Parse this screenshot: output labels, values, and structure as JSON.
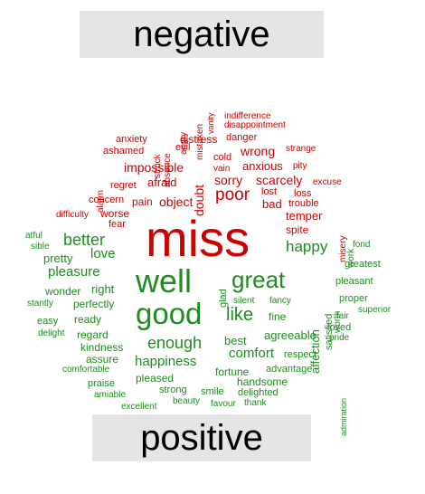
{
  "headings": {
    "negative": "negative",
    "positive": "positive"
  },
  "colors": {
    "negative": "#cc0000",
    "positive": "#1e8c1e",
    "panel": "#e5e5e5"
  },
  "words": [
    {
      "t": "miss",
      "s": "neg"
    },
    {
      "t": "poor",
      "s": "neg"
    },
    {
      "t": "impossible",
      "s": "neg"
    },
    {
      "t": "afraid",
      "s": "neg"
    },
    {
      "t": "object",
      "s": "neg"
    },
    {
      "t": "sorry",
      "s": "neg"
    },
    {
      "t": "scarcely",
      "s": "neg"
    },
    {
      "t": "doubt",
      "s": "neg"
    },
    {
      "t": "anxious",
      "s": "neg"
    },
    {
      "t": "wrong",
      "s": "neg"
    },
    {
      "t": "evil",
      "s": "neg"
    },
    {
      "t": "distress",
      "s": "neg"
    },
    {
      "t": "danger",
      "s": "neg"
    },
    {
      "t": "anxiety",
      "s": "neg"
    },
    {
      "t": "ashamed",
      "s": "neg"
    },
    {
      "t": "struck",
      "s": "neg"
    },
    {
      "t": "absence",
      "s": "neg"
    },
    {
      "t": "angry",
      "s": "neg"
    },
    {
      "t": "mistaken",
      "s": "neg"
    },
    {
      "t": "vanity",
      "s": "neg"
    },
    {
      "t": "indifference",
      "s": "neg"
    },
    {
      "t": "disappointment",
      "s": "neg"
    },
    {
      "t": "strange",
      "s": "neg"
    },
    {
      "t": "cold",
      "s": "neg"
    },
    {
      "t": "vain",
      "s": "neg"
    },
    {
      "t": "pity",
      "s": "neg"
    },
    {
      "t": "alarm",
      "s": "neg"
    },
    {
      "t": "regret",
      "s": "neg"
    },
    {
      "t": "concern",
      "s": "neg"
    },
    {
      "t": "pain",
      "s": "neg"
    },
    {
      "t": "lost",
      "s": "neg"
    },
    {
      "t": "loss",
      "s": "neg"
    },
    {
      "t": "bad",
      "s": "neg"
    },
    {
      "t": "trouble",
      "s": "neg"
    },
    {
      "t": "excuse",
      "s": "neg"
    },
    {
      "t": "temper",
      "s": "neg"
    },
    {
      "t": "misery",
      "s": "neg"
    },
    {
      "t": "difficulty",
      "s": "neg"
    },
    {
      "t": "worse",
      "s": "neg"
    },
    {
      "t": "fear",
      "s": "neg"
    },
    {
      "t": "spite",
      "s": "neg"
    },
    {
      "t": "well",
      "s": "pos"
    },
    {
      "t": "good",
      "s": "pos"
    },
    {
      "t": "great",
      "s": "pos"
    },
    {
      "t": "like",
      "s": "pos"
    },
    {
      "t": "better",
      "s": "pos"
    },
    {
      "t": "love",
      "s": "pos"
    },
    {
      "t": "happy",
      "s": "pos"
    },
    {
      "t": "pleasure",
      "s": "pos"
    },
    {
      "t": "enough",
      "s": "pos"
    },
    {
      "t": "happiness",
      "s": "pos"
    },
    {
      "t": "best",
      "s": "pos"
    },
    {
      "t": "comfort",
      "s": "pos"
    },
    {
      "t": "agreeable",
      "s": "pos"
    },
    {
      "t": "affection",
      "s": "pos"
    },
    {
      "t": "satisfied",
      "s": "pos"
    },
    {
      "t": "glad",
      "s": "pos"
    },
    {
      "t": "work",
      "s": "pos"
    },
    {
      "t": "fond",
      "s": "pos"
    },
    {
      "t": "greatest",
      "s": "pos"
    },
    {
      "t": "pleasant",
      "s": "pos"
    },
    {
      "t": "proper",
      "s": "pos"
    },
    {
      "t": "superior",
      "s": "pos"
    },
    {
      "t": "worth",
      "s": "pos"
    },
    {
      "t": "fair",
      "s": "pos"
    },
    {
      "t": "loved",
      "s": "pos"
    },
    {
      "t": "pride",
      "s": "pos"
    },
    {
      "t": "admiration",
      "s": "pos"
    },
    {
      "t": "respect",
      "s": "pos"
    },
    {
      "t": "advantage",
      "s": "pos"
    },
    {
      "t": "fortune",
      "s": "pos"
    },
    {
      "t": "handsome",
      "s": "pos"
    },
    {
      "t": "delighted",
      "s": "pos"
    },
    {
      "t": "smile",
      "s": "pos"
    },
    {
      "t": "favour",
      "s": "pos"
    },
    {
      "t": "thank",
      "s": "pos"
    },
    {
      "t": "beauty",
      "s": "pos"
    },
    {
      "t": "strong",
      "s": "pos"
    },
    {
      "t": "pleased",
      "s": "pos"
    },
    {
      "t": "excellent",
      "s": "pos"
    },
    {
      "t": "amiable",
      "s": "pos"
    },
    {
      "t": "praise",
      "s": "pos"
    },
    {
      "t": "comfortable",
      "s": "pos"
    },
    {
      "t": "assure",
      "s": "pos"
    },
    {
      "t": "kindness",
      "s": "pos"
    },
    {
      "t": "regard",
      "s": "pos"
    },
    {
      "t": "ready",
      "s": "pos"
    },
    {
      "t": "perfectly",
      "s": "pos"
    },
    {
      "t": "right",
      "s": "pos"
    },
    {
      "t": "wonder",
      "s": "pos"
    },
    {
      "t": "pretty",
      "s": "pos"
    },
    {
      "t": "silent",
      "s": "pos"
    },
    {
      "t": "fancy",
      "s": "pos"
    },
    {
      "t": "fine",
      "s": "pos"
    },
    {
      "t": "easy",
      "s": "pos"
    },
    {
      "t": "delight",
      "s": "pos"
    },
    {
      "t": "stantly",
      "s": "pos"
    },
    {
      "t": "sible",
      "s": "pos"
    },
    {
      "t": "atful",
      "s": "pos"
    }
  ]
}
